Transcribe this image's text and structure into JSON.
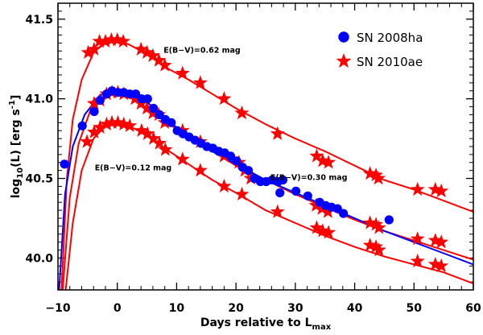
{
  "chart_data": {
    "type": "scatter",
    "xlabel": "Days relative to L",
    "xlabel_sub": "max",
    "ylabel_prefix": "log",
    "ylabel_sub": "10",
    "ylabel_mid": "(L) [erg s",
    "ylabel_sup": "-1",
    "ylabel_suffix": "]",
    "xlim": [
      -10,
      60
    ],
    "ylim": [
      39.8,
      41.6
    ],
    "x_ticks": [
      -10,
      0,
      10,
      20,
      30,
      40,
      50,
      60
    ],
    "x_tick_labels": [
      "−10",
      "0",
      "10",
      "20",
      "30",
      "40",
      "50",
      "60"
    ],
    "y_ticks": [
      40.0,
      40.5,
      41.0,
      41.5
    ],
    "y_tick_labels": [
      "40.0",
      "40.5",
      "41.0",
      "41.5"
    ],
    "legend": [
      {
        "label": "SN 2008ha",
        "marker": "circle",
        "color": "#0000ff"
      },
      {
        "label": "SN 2010ae",
        "marker": "star",
        "color": "#ff0000"
      }
    ],
    "annotations": [
      {
        "text": "E(B−V)=0.62 mag",
        "x": 7.8,
        "y": 41.29
      },
      {
        "text": "E(B−V)=0.12 mag",
        "x": -3.8,
        "y": 40.55
      },
      {
        "text": "E(B−V)=0.30 mag",
        "x": 25.8,
        "y": 40.49
      }
    ],
    "series": [
      {
        "name": "SN 2008ha",
        "marker": "circle",
        "color": "#0000ff",
        "points": [
          [
            -8.9,
            40.59
          ],
          [
            -5.9,
            40.83
          ],
          [
            -3.9,
            40.92
          ],
          [
            -2.9,
            40.99
          ],
          [
            -1.8,
            41.03
          ],
          [
            -0.9,
            41.05
          ],
          [
            0.1,
            41.04
          ],
          [
            1.1,
            41.04
          ],
          [
            2.1,
            41.03
          ],
          [
            3.1,
            41.03
          ],
          [
            4.1,
            41.0
          ],
          [
            5.1,
            41.0
          ],
          [
            6.1,
            40.94
          ],
          [
            7.1,
            40.9
          ],
          [
            8.1,
            40.87
          ],
          [
            9.1,
            40.85
          ],
          [
            10.1,
            40.8
          ],
          [
            11.1,
            40.78
          ],
          [
            12.1,
            40.76
          ],
          [
            13.1,
            40.74
          ],
          [
            14.1,
            40.72
          ],
          [
            15.1,
            40.7
          ],
          [
            16.1,
            40.69
          ],
          [
            17.1,
            40.67
          ],
          [
            18.1,
            40.66
          ],
          [
            19.1,
            40.64
          ],
          [
            20.1,
            40.61
          ],
          [
            21.1,
            40.57
          ],
          [
            22.1,
            40.55
          ],
          [
            23.1,
            40.5
          ],
          [
            24.1,
            40.48
          ],
          [
            25.1,
            40.48
          ],
          [
            26.1,
            40.49
          ],
          [
            27.1,
            40.48
          ],
          [
            27.4,
            40.41
          ],
          [
            27.9,
            40.49
          ],
          [
            30.1,
            40.42
          ],
          [
            32.1,
            40.39
          ],
          [
            34.1,
            40.35
          ],
          [
            35.1,
            40.33
          ],
          [
            36.1,
            40.32
          ],
          [
            37.1,
            40.31
          ],
          [
            38.1,
            40.28
          ],
          [
            45.8,
            40.24
          ]
        ]
      },
      {
        "name": "SN 2010ae",
        "marker": "star",
        "color": "#ff0000",
        "points": [
          [
            -4.9,
            41.29
          ],
          [
            -3.9,
            41.31
          ],
          [
            -3.0,
            41.36
          ],
          [
            -2.0,
            41.36
          ],
          [
            -1.0,
            41.37
          ],
          [
            0.0,
            41.37
          ],
          [
            1.0,
            41.36
          ],
          [
            4.0,
            41.31
          ],
          [
            5.0,
            41.29
          ],
          [
            6.0,
            41.27
          ],
          [
            7.0,
            41.24
          ],
          [
            8.0,
            41.21
          ],
          [
            11.0,
            41.16
          ],
          [
            14.0,
            41.1
          ],
          [
            18.0,
            41.0
          ],
          [
            21.0,
            40.91
          ],
          [
            27.0,
            40.78
          ],
          [
            33.6,
            40.64
          ],
          [
            34.6,
            40.61
          ],
          [
            35.6,
            40.6
          ],
          [
            42.6,
            40.53
          ],
          [
            43.6,
            40.52
          ],
          [
            44.0,
            40.5
          ],
          [
            50.6,
            40.43
          ],
          [
            53.6,
            40.43
          ],
          [
            54.6,
            40.42
          ],
          [
            -3.9,
            40.97
          ],
          [
            -2.9,
            40.99
          ],
          [
            -1.8,
            41.03
          ],
          [
            -0.9,
            41.04
          ],
          [
            0.1,
            41.04
          ],
          [
            1.1,
            41.03
          ],
          [
            3.0,
            41.0
          ],
          [
            4.0,
            40.97
          ],
          [
            5.0,
            40.94
          ],
          [
            6.0,
            40.91
          ],
          [
            7.0,
            40.9
          ],
          [
            8.0,
            40.85
          ],
          [
            11.0,
            40.8
          ],
          [
            14.0,
            40.73
          ],
          [
            18.0,
            40.64
          ],
          [
            20.5,
            40.6
          ],
          [
            21.5,
            40.55
          ],
          [
            22.5,
            40.5
          ],
          [
            33.5,
            40.33
          ],
          [
            34.5,
            40.31
          ],
          [
            35.5,
            40.29
          ],
          [
            42.6,
            40.22
          ],
          [
            43.6,
            40.21
          ],
          [
            44.1,
            40.19
          ],
          [
            50.6,
            40.12
          ],
          [
            53.6,
            40.11
          ],
          [
            54.6,
            40.1
          ],
          [
            -5.1,
            40.73
          ],
          [
            -3.9,
            40.79
          ],
          [
            -2.9,
            40.82
          ],
          [
            -1.8,
            40.84
          ],
          [
            -0.9,
            40.85
          ],
          [
            0.1,
            40.85
          ],
          [
            1.1,
            40.84
          ],
          [
            2.1,
            40.83
          ],
          [
            4.1,
            40.8
          ],
          [
            5.1,
            40.78
          ],
          [
            6.1,
            40.75
          ],
          [
            7.1,
            40.72
          ],
          [
            8.1,
            40.68
          ],
          [
            11.0,
            40.62
          ],
          [
            14.0,
            40.55
          ],
          [
            18.0,
            40.45
          ],
          [
            21.0,
            40.4
          ],
          [
            27.0,
            40.29
          ],
          [
            33.6,
            40.19
          ],
          [
            34.6,
            40.17
          ],
          [
            35.6,
            40.16
          ],
          [
            42.6,
            40.08
          ],
          [
            43.6,
            40.07
          ],
          [
            44.1,
            40.05
          ],
          [
            50.6,
            39.98
          ],
          [
            53.6,
            39.96
          ],
          [
            54.6,
            39.95
          ]
        ]
      }
    ],
    "curves": [
      {
        "name": "SN 2010ae fit, E(B−V)=0.62 mag",
        "color": "#ff0000",
        "points": [
          [
            -9.4,
            39.8
          ],
          [
            -8.5,
            40.5
          ],
          [
            -7.5,
            40.87
          ],
          [
            -6.0,
            41.12
          ],
          [
            -4.0,
            41.29
          ],
          [
            -2.0,
            41.36
          ],
          [
            0.0,
            41.37
          ],
          [
            2.0,
            41.34
          ],
          [
            5.0,
            41.28
          ],
          [
            8.0,
            41.2
          ],
          [
            12.0,
            41.12
          ],
          [
            16.0,
            41.03
          ],
          [
            20.0,
            40.94
          ],
          [
            25.0,
            40.84
          ],
          [
            30.0,
            40.75
          ],
          [
            35.0,
            40.67
          ],
          [
            40.0,
            40.58
          ],
          [
            45.0,
            40.49
          ],
          [
            50.0,
            40.43
          ],
          [
            55.0,
            40.36
          ],
          [
            60.0,
            40.29
          ]
        ]
      },
      {
        "name": "SN 2010ae fit, E(B−V)=0.30 mag",
        "color": "#ff0000",
        "points": [
          [
            -9.2,
            39.8
          ],
          [
            -8.0,
            40.38
          ],
          [
            -6.5,
            40.72
          ],
          [
            -4.5,
            40.93
          ],
          [
            -2.5,
            41.01
          ],
          [
            0.0,
            41.03
          ],
          [
            2.5,
            41.0
          ],
          [
            5.0,
            40.94
          ],
          [
            8.0,
            40.86
          ],
          [
            12.0,
            40.76
          ],
          [
            16.0,
            40.67
          ],
          [
            20.0,
            40.58
          ],
          [
            25.0,
            40.49
          ],
          [
            30.0,
            40.4
          ],
          [
            35.0,
            40.32
          ],
          [
            40.0,
            40.24
          ],
          [
            45.0,
            40.17
          ],
          [
            50.0,
            40.11
          ],
          [
            55.0,
            40.05
          ],
          [
            60.0,
            39.99
          ]
        ]
      },
      {
        "name": "SN 2010ae fit, E(B−V)=0.12 mag",
        "color": "#ff0000",
        "points": [
          [
            -8.7,
            39.8
          ],
          [
            -7.5,
            40.22
          ],
          [
            -6.0,
            40.55
          ],
          [
            -4.0,
            40.75
          ],
          [
            -2.0,
            40.83
          ],
          [
            0.0,
            40.85
          ],
          [
            2.0,
            40.83
          ],
          [
            5.0,
            40.77
          ],
          [
            8.0,
            40.69
          ],
          [
            12.0,
            40.59
          ],
          [
            16.0,
            40.49
          ],
          [
            20.0,
            40.41
          ],
          [
            25.0,
            40.3
          ],
          [
            30.0,
            40.22
          ],
          [
            35.0,
            40.14
          ],
          [
            40.0,
            40.07
          ],
          [
            45.0,
            40.01
          ],
          [
            50.0,
            39.96
          ],
          [
            55.0,
            39.91
          ],
          [
            60.0,
            39.84
          ]
        ]
      },
      {
        "name": "SN 2008ha fit",
        "color": "#0000ff",
        "points": [
          [
            -9.8,
            39.8
          ],
          [
            -8.8,
            40.4
          ],
          [
            -7.5,
            40.7
          ],
          [
            -5.5,
            40.9
          ],
          [
            -3.0,
            41.02
          ],
          [
            -1.0,
            41.05
          ],
          [
            1.0,
            41.05
          ],
          [
            3.0,
            41.03
          ],
          [
            5.0,
            40.98
          ],
          [
            8.0,
            40.88
          ],
          [
            12.0,
            40.76
          ],
          [
            16.0,
            40.67
          ],
          [
            20.0,
            40.59
          ],
          [
            25.0,
            40.49
          ],
          [
            30.0,
            40.41
          ],
          [
            35.0,
            40.33
          ],
          [
            40.0,
            40.25
          ],
          [
            45.0,
            40.17
          ],
          [
            50.0,
            40.1
          ],
          [
            55.0,
            40.03
          ],
          [
            60.0,
            39.96
          ]
        ]
      }
    ]
  }
}
